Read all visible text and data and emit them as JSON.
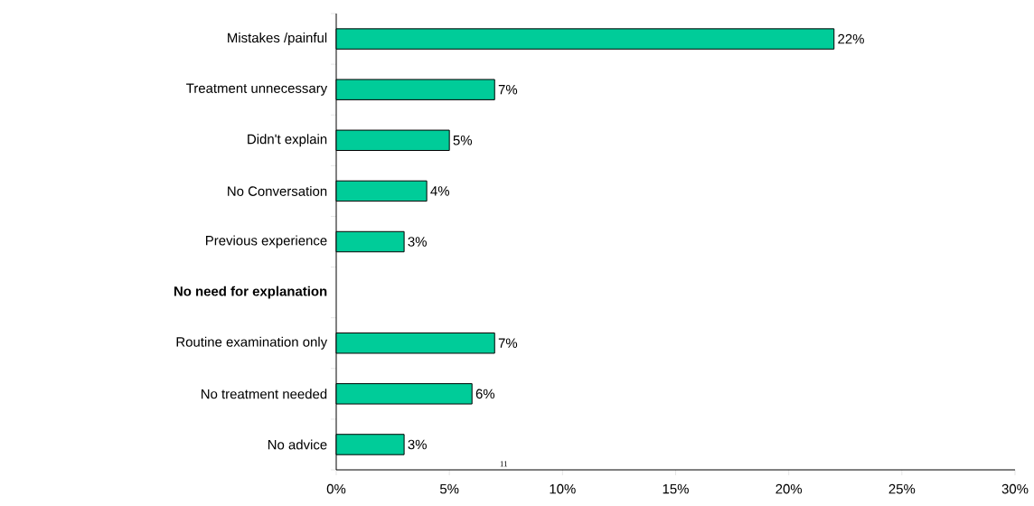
{
  "chart_data": {
    "type": "bar",
    "orientation": "horizontal",
    "categories": [
      "Mistakes /painful",
      "Treatment unnecessary",
      "Didn't explain",
      "No Conversation",
      "Previous experience",
      "No need for explanation",
      "Routine examination only",
      "No treatment needed",
      "No advice"
    ],
    "values": [
      22,
      7,
      5,
      4,
      3,
      null,
      7,
      6,
      3
    ],
    "value_labels": [
      "22%",
      "7%",
      "5%",
      "4%",
      "3%",
      null,
      "7%",
      "6%",
      "3%"
    ],
    "color": "#00cc99",
    "xlim": [
      0,
      30
    ],
    "xticks": [
      {
        "value": 0,
        "label": "0%"
      },
      {
        "value": 5,
        "label": "5%"
      },
      {
        "value": 10,
        "label": "10%"
      },
      {
        "value": 15,
        "label": "15%"
      },
      {
        "value": 20,
        "label": "20%"
      },
      {
        "value": 25,
        "label": "25%"
      },
      {
        "value": 30,
        "label": "30%"
      }
    ],
    "annotations": [
      "11"
    ],
    "grid": false
  }
}
